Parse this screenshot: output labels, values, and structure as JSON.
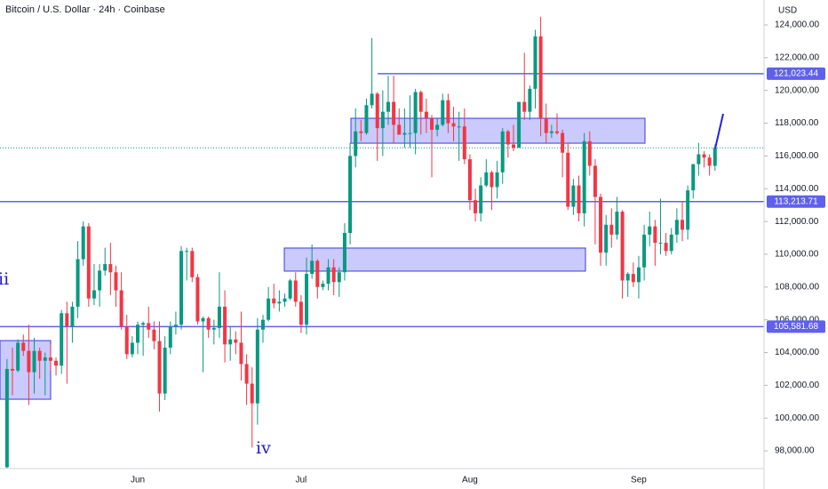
{
  "chart_data": {
    "type": "candlestick",
    "title": "Bitcoin / U.S. Dollar · 24h · Coinbase",
    "currency": "USD",
    "up_color": "#089981",
    "down_color": "#f23645",
    "ylim": [
      96920,
      125520
    ],
    "yticks": [
      {
        "value": 98000,
        "label": "98,000.00"
      },
      {
        "value": 100000,
        "label": "100,000.00"
      },
      {
        "value": 102000,
        "label": "102,000.00"
      },
      {
        "value": 104000,
        "label": "104,000.00"
      },
      {
        "value": 106000,
        "label": "106,000.00"
      },
      {
        "value": 108000,
        "label": "108,000.00"
      },
      {
        "value": 110000,
        "label": "110,000.00"
      },
      {
        "value": 112000,
        "label": "112,000.00"
      },
      {
        "value": 114000,
        "label": "114,000.00"
      },
      {
        "value": 116000,
        "label": "116,000.00"
      },
      {
        "value": 118000,
        "label": "118,000.00"
      },
      {
        "value": 120000,
        "label": "120,000.00"
      },
      {
        "value": 122000,
        "label": "122,000.00"
      },
      {
        "value": 124000,
        "label": "124,000.00"
      }
    ],
    "hlines": [
      {
        "value": 121023.44,
        "label": "121,023.44",
        "color": "#6060ee"
      },
      {
        "value": 113213.71,
        "label": "113,213.71",
        "color": "#6060ee"
      },
      {
        "value": 105581.68,
        "label": "105,581.68",
        "color": "#6060ee"
      }
    ],
    "zones": [
      {
        "top": 104730,
        "bottom": 101150
      },
      {
        "top": 110380,
        "bottom": 108970
      },
      {
        "top": 118300,
        "bottom": 116780
      }
    ],
    "annotations": [
      "ii",
      "iv"
    ],
    "categories": [
      null,
      null,
      null,
      null,
      null,
      null,
      null,
      null,
      null,
      null,
      null,
      null,
      null,
      null,
      null,
      null,
      null,
      null,
      null,
      null,
      null,
      null,
      null,
      null,
      "Jun",
      null,
      null,
      null,
      null,
      null,
      null,
      null,
      null,
      null,
      null,
      null,
      null,
      null,
      null,
      null,
      null,
      null,
      null,
      null,
      null,
      null,
      null,
      null,
      null,
      null,
      null,
      null,
      null,
      null,
      "Jul",
      null,
      null,
      null,
      null,
      null,
      null,
      null,
      null,
      null,
      null,
      null,
      null,
      null,
      null,
      null,
      null,
      null,
      null,
      null,
      null,
      null,
      null,
      null,
      null,
      null,
      null,
      null,
      null,
      null,
      null,
      "Aug",
      null,
      null,
      null,
      null,
      null,
      null,
      null,
      null,
      null,
      null,
      null,
      null,
      null,
      null,
      null,
      null,
      null,
      null,
      null,
      null,
      null,
      null,
      null,
      null,
      null,
      null,
      null,
      null,
      null,
      null,
      "Sep",
      null,
      null,
      null,
      null,
      null,
      null,
      null,
      null,
      null,
      null,
      null,
      null,
      null,
      null
    ],
    "ohlc": [
      [
        97000,
        103600,
        96900,
        103000
      ],
      [
        103000,
        104300,
        101400,
        102900
      ],
      [
        102900,
        104800,
        102800,
        104600
      ],
      [
        104600,
        105100,
        103800,
        104100
      ],
      [
        104100,
        105700,
        100800,
        102800
      ],
      [
        102800,
        104900,
        101500,
        104100
      ],
      [
        104100,
        104300,
        102400,
        103500
      ],
      [
        103500,
        104000,
        101400,
        103700
      ],
      [
        103700,
        104500,
        102900,
        103500
      ],
      [
        103500,
        103700,
        102600,
        103200
      ],
      [
        103200,
        106600,
        102700,
        106400
      ],
      [
        106400,
        107100,
        102100,
        105600
      ],
      [
        105600,
        107100,
        104600,
        106800
      ],
      [
        106800,
        110800,
        106100,
        109700
      ],
      [
        109700,
        112000,
        109300,
        111700
      ],
      [
        111700,
        111900,
        106800,
        107300
      ],
      [
        107300,
        109400,
        106900,
        107800
      ],
      [
        107800,
        109400,
        106800,
        109000
      ],
      [
        109000,
        110400,
        108700,
        109400
      ],
      [
        109400,
        110700,
        107500,
        108900
      ],
      [
        108900,
        109300,
        106800,
        107800
      ],
      [
        107800,
        108900,
        105400,
        105600
      ],
      [
        105600,
        106300,
        103600,
        103900
      ],
      [
        103900,
        105000,
        103700,
        104600
      ],
      [
        104600,
        105900,
        103900,
        105700
      ],
      [
        105700,
        105900,
        103800,
        105800
      ],
      [
        105800,
        106800,
        104900,
        105400
      ],
      [
        105400,
        105900,
        104200,
        104700
      ],
      [
        104700,
        105900,
        100400,
        101500
      ],
      [
        101500,
        105000,
        101100,
        104300
      ],
      [
        104300,
        105900,
        103900,
        105600
      ],
      [
        105600,
        106500,
        105100,
        105700
      ],
      [
        105700,
        110500,
        105400,
        110200
      ],
      [
        110200,
        110400,
        108400,
        110200
      ],
      [
        110200,
        110400,
        108300,
        108600
      ],
      [
        108600,
        108800,
        105700,
        105900
      ],
      [
        105900,
        106200,
        102800,
        106100
      ],
      [
        106100,
        106200,
        104900,
        105400
      ],
      [
        105400,
        106000,
        104500,
        105500
      ],
      [
        105500,
        108900,
        104900,
        106800
      ],
      [
        106800,
        107800,
        103400,
        104500
      ],
      [
        104500,
        105600,
        103500,
        104800
      ],
      [
        104800,
        105300,
        103900,
        104600
      ],
      [
        104600,
        106500,
        102300,
        103300
      ],
      [
        103300,
        103900,
        100800,
        102100
      ],
      [
        102100,
        103100,
        98200,
        100900
      ],
      [
        100900,
        106100,
        99600,
        105400
      ],
      [
        105400,
        106300,
        104600,
        106000
      ],
      [
        106000,
        108000,
        105900,
        107300
      ],
      [
        107300,
        108200,
        106700,
        107000
      ],
      [
        107000,
        107800,
        106500,
        107100
      ],
      [
        107100,
        107600,
        106800,
        107300
      ],
      [
        107300,
        108500,
        107200,
        108400
      ],
      [
        108400,
        108900,
        106800,
        107100
      ],
      [
        107100,
        107500,
        105200,
        105700
      ],
      [
        105700,
        109800,
        105100,
        108800
      ],
      [
        108800,
        110600,
        108500,
        109600
      ],
      [
        109600,
        109700,
        107300,
        108000
      ],
      [
        108000,
        108400,
        107800,
        108200
      ],
      [
        108200,
        109700,
        107800,
        109200
      ],
      [
        109200,
        109700,
        107500,
        108300
      ],
      [
        108300,
        109200,
        107400,
        108900
      ],
      [
        108900,
        111900,
        108400,
        111300
      ],
      [
        111300,
        116800,
        110600,
        116000
      ],
      [
        116000,
        118900,
        115300,
        117500
      ],
      [
        117500,
        118200,
        116900,
        117400
      ],
      [
        117400,
        119500,
        117300,
        119100
      ],
      [
        119100,
        123200,
        118900,
        119800
      ],
      [
        119800,
        119900,
        115700,
        117700
      ],
      [
        117700,
        120000,
        116000,
        118700
      ],
      [
        118700,
        120900,
        117900,
        119300
      ],
      [
        119300,
        120900,
        116800,
        117900
      ],
      [
        117900,
        118900,
        117300,
        117300
      ],
      [
        117300,
        118900,
        116500,
        117400
      ],
      [
        117400,
        119700,
        116500,
        117400
      ],
      [
        117400,
        120100,
        116100,
        119900
      ],
      [
        119900,
        120000,
        117300,
        118700
      ],
      [
        118700,
        119500,
        117400,
        118300
      ],
      [
        118300,
        118500,
        114700,
        117600
      ],
      [
        117600,
        118300,
        117200,
        117900
      ],
      [
        117900,
        119800,
        117800,
        119400
      ],
      [
        119400,
        119800,
        117400,
        118000
      ],
      [
        118000,
        119000,
        116900,
        117800
      ],
      [
        117800,
        118700,
        115700,
        117800
      ],
      [
        117800,
        118900,
        115500,
        115800
      ],
      [
        115800,
        116100,
        112700,
        113300
      ],
      [
        113300,
        114000,
        112000,
        112500
      ],
      [
        112500,
        114700,
        112000,
        114200
      ],
      [
        114200,
        115800,
        114100,
        115000
      ],
      [
        115000,
        115100,
        112700,
        114100
      ],
      [
        114100,
        115700,
        113400,
        115000
      ],
      [
        115000,
        117700,
        114300,
        117500
      ],
      [
        117500,
        117600,
        115900,
        116700
      ],
      [
        116700,
        117900,
        116300,
        116500
      ],
      [
        116500,
        119300,
        116500,
        119300
      ],
      [
        119300,
        122300,
        118200,
        118700
      ],
      [
        118700,
        120300,
        118200,
        120100
      ],
      [
        120100,
        123700,
        118900,
        123300
      ],
      [
        123300,
        124500,
        117200,
        118300
      ],
      [
        118300,
        119200,
        116800,
        117400
      ],
      [
        117400,
        117900,
        117100,
        117500
      ],
      [
        117500,
        118600,
        117300,
        117400
      ],
      [
        117400,
        117600,
        114700,
        116200
      ],
      [
        116200,
        116800,
        112700,
        112900
      ],
      [
        112900,
        114600,
        112400,
        114200
      ],
      [
        114200,
        114800,
        112000,
        112500
      ],
      [
        112500,
        117400,
        111700,
        116900
      ],
      [
        116900,
        117500,
        114800,
        115400
      ],
      [
        115400,
        115800,
        110600,
        113500
      ],
      [
        113500,
        113700,
        109300,
        110100
      ],
      [
        110100,
        112400,
        109300,
        111800
      ],
      [
        111800,
        112800,
        110400,
        111200
      ],
      [
        111200,
        113500,
        110900,
        112600
      ],
      [
        112600,
        112700,
        107300,
        108400
      ],
      [
        108400,
        108900,
        107400,
        108800
      ],
      [
        108800,
        109500,
        108000,
        108300
      ],
      [
        108300,
        109900,
        107300,
        109200
      ],
      [
        109200,
        111800,
        108400,
        111200
      ],
      [
        111200,
        112600,
        110500,
        111700
      ],
      [
        111700,
        112100,
        109300,
        110700
      ],
      [
        110700,
        113400,
        110000,
        110700
      ],
      [
        110700,
        111300,
        109900,
        110200
      ],
      [
        110200,
        111600,
        110000,
        111200
      ],
      [
        111200,
        112800,
        110700,
        112100
      ],
      [
        112100,
        113200,
        110800,
        111500
      ],
      [
        111500,
        114200,
        110900,
        113900
      ],
      [
        113900,
        115500,
        113400,
        115500
      ],
      [
        115500,
        116800,
        114800,
        116100
      ],
      [
        116100,
        116300,
        115300,
        115900
      ],
      [
        115900,
        116100,
        114800,
        115400
      ],
      [
        115400,
        116700,
        115100,
        116500
      ]
    ]
  }
}
